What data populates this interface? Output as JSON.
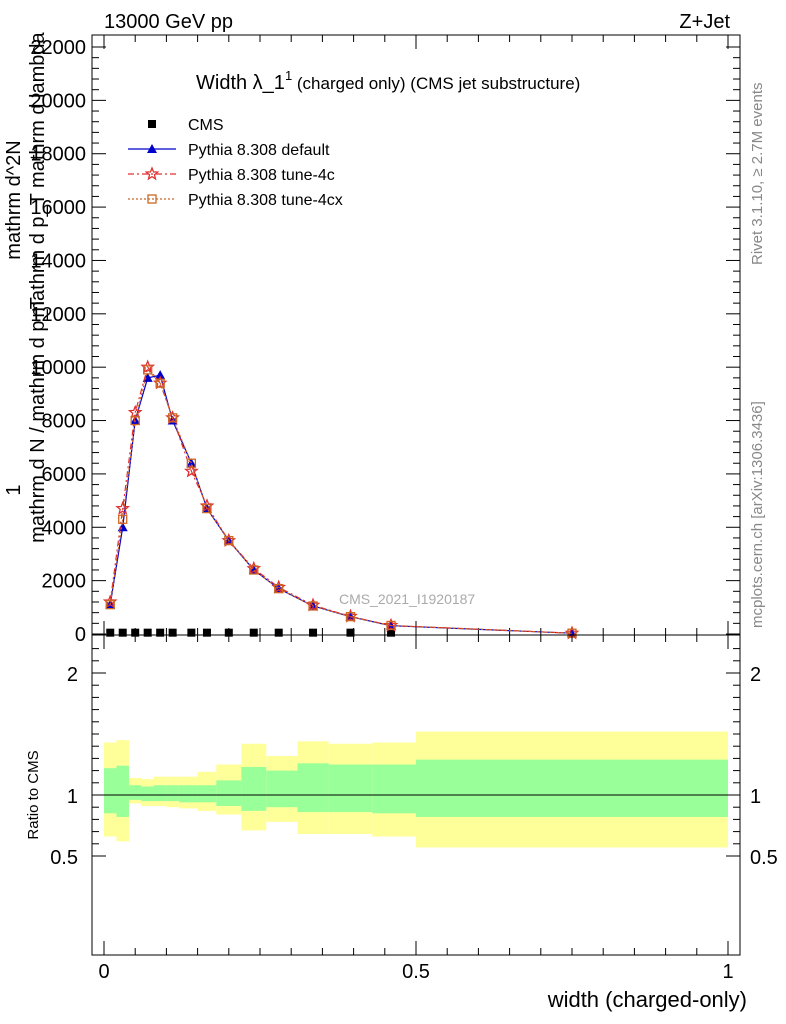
{
  "header": {
    "left": "13000 GeV pp",
    "right": "Z+Jet"
  },
  "side_labels": {
    "rivet": "Rivet 3.1.10, ≥ 2.7M events",
    "mcplots": "mcplots.cern.ch [arXiv:1306.3436]"
  },
  "watermark": "CMS_2021_I1920187",
  "chart_data": [
    {
      "type": "line",
      "title_main": "Width λ_1",
      "title_sup": "1",
      "title_rest": " (charged only) (CMS jet substructure)",
      "ylabel_lines": [
        "1",
        "mathrm d N / mathrm d p_T",
        "mathrm d^2N",
        "mathrm d p_T mathrm d lambda"
      ],
      "xlim": [
        0,
        1
      ],
      "ylim": [
        0,
        22000
      ],
      "yticks": [
        0,
        2000,
        4000,
        6000,
        8000,
        10000,
        12000,
        14000,
        16000,
        18000,
        20000,
        22000
      ],
      "ytick_labels": [
        "0",
        "2000",
        "4000",
        "6000",
        "8000",
        "10000",
        "12000",
        "14000",
        "16000",
        "18000",
        "20000",
        "22000"
      ],
      "legend_position": "top-left",
      "x": [
        0.01,
        0.03,
        0.05,
        0.07,
        0.09,
        0.11,
        0.14,
        0.165,
        0.2,
        0.24,
        0.28,
        0.335,
        0.395,
        0.46,
        0.75
      ],
      "series": [
        {
          "name": "CMS",
          "color": "#000000",
          "marker": "square",
          "values": [
            50,
            50,
            50,
            50,
            50,
            50,
            50,
            50,
            50,
            50,
            50,
            50,
            50,
            50,
            0
          ]
        },
        {
          "name": "Pythia 8.308 default",
          "color": "#0000cc",
          "marker": "triangle",
          "dash": "",
          "values": [
            1100,
            4000,
            8000,
            9600,
            9700,
            8000,
            6400,
            4700,
            3500,
            2400,
            1700,
            1050,
            650,
            310,
            30
          ]
        },
        {
          "name": "Pythia 8.308 tune-4c",
          "color": "#e03030",
          "marker": "star",
          "dash": "6,3,2,3",
          "values": [
            1200,
            4700,
            8300,
            10000,
            9400,
            8100,
            6100,
            4800,
            3500,
            2450,
            1750,
            1080,
            660,
            320,
            30
          ]
        },
        {
          "name": "Pythia 8.308 tune-4cx",
          "color": "#cc6622",
          "marker": "open-square",
          "dash": "2,2",
          "values": [
            1100,
            4300,
            8000,
            9900,
            9400,
            8100,
            6400,
            4700,
            3500,
            2400,
            1700,
            1050,
            650,
            320,
            30
          ]
        }
      ]
    },
    {
      "type": "area",
      "ylabel": "Ratio to CMS",
      "xlabel": "width (charged-only)",
      "xlim": [
        0,
        1
      ],
      "ylim": [
        0.35,
        2.3
      ],
      "xticks": [
        0,
        0.5,
        1
      ],
      "xtick_labels": [
        "0",
        "0.5",
        "1"
      ],
      "yticks": [
        0.5,
        1,
        2
      ],
      "ytick_labels": [
        "0.5",
        "1",
        "2"
      ],
      "reference": 1,
      "bin_edges": [
        0,
        0.02,
        0.04,
        0.06,
        0.08,
        0.1,
        0.12,
        0.15,
        0.18,
        0.22,
        0.26,
        0.31,
        0.36,
        0.43,
        0.5,
        1.0
      ],
      "band_colors": {
        "outer": "#ffff99",
        "inner": "#99ff99"
      },
      "outer_band": {
        "lo": [
          0.66,
          0.62,
          0.93,
          0.91,
          0.91,
          0.9,
          0.89,
          0.87,
          0.84,
          0.71,
          0.78,
          0.68,
          0.68,
          0.66,
          0.57
        ],
        "hi": [
          1.43,
          1.45,
          1.14,
          1.13,
          1.15,
          1.15,
          1.15,
          1.19,
          1.25,
          1.42,
          1.32,
          1.44,
          1.42,
          1.43,
          1.52
        ]
      },
      "inner_band": {
        "lo": [
          0.85,
          0.82,
          0.96,
          0.95,
          0.95,
          0.95,
          0.94,
          0.94,
          0.91,
          0.87,
          0.9,
          0.86,
          0.86,
          0.85,
          0.82
        ],
        "hi": [
          1.22,
          1.24,
          1.08,
          1.07,
          1.08,
          1.08,
          1.08,
          1.08,
          1.12,
          1.23,
          1.2,
          1.26,
          1.25,
          1.25,
          1.29
        ]
      }
    }
  ]
}
